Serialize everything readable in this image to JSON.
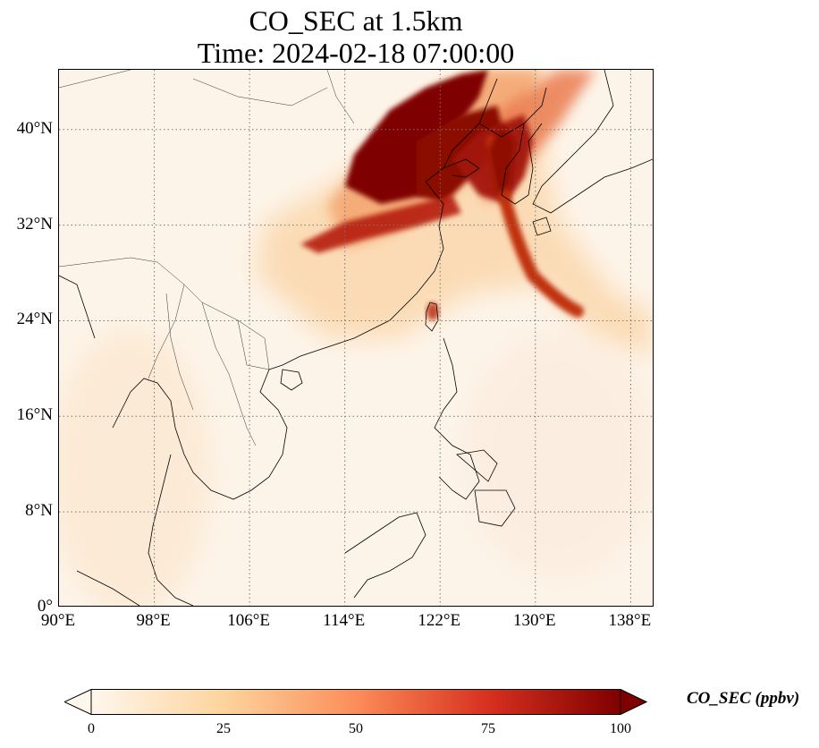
{
  "title": {
    "line1": "CO_SEC at 1.5km",
    "line2": "Time: 2024-02-18 07:00:00"
  },
  "map": {
    "projection": "PlateCarree",
    "lon_range": [
      90,
      140
    ],
    "lat_range": [
      0,
      45
    ],
    "gridlines": true,
    "gridline_style": "dotted",
    "coastlines": true,
    "country_borders": true,
    "background_color": "#fdf4e9"
  },
  "axes": {
    "x_ticks": [
      {
        "value": 90,
        "label": "90°E"
      },
      {
        "value": 98,
        "label": "98°E"
      },
      {
        "value": 106,
        "label": "106°E"
      },
      {
        "value": 114,
        "label": "114°E"
      },
      {
        "value": 122,
        "label": "122°E"
      },
      {
        "value": 130,
        "label": "130°E"
      },
      {
        "value": 138,
        "label": "138°E"
      }
    ],
    "y_ticks": [
      {
        "value": 0,
        "label": "0°"
      },
      {
        "value": 8,
        "label": "8°N"
      },
      {
        "value": 16,
        "label": "16°N"
      },
      {
        "value": 24,
        "label": "24°N"
      },
      {
        "value": 32,
        "label": "32°N"
      },
      {
        "value": 40,
        "label": "40°N"
      }
    ]
  },
  "colorbar": {
    "label": "CO_SEC (ppbv)",
    "colormap": "OrRd",
    "min": 0,
    "max": 100,
    "extend": "both",
    "ticks": [
      {
        "value": 0,
        "label": "0"
      },
      {
        "value": 25,
        "label": "25"
      },
      {
        "value": 50,
        "label": "50"
      },
      {
        "value": 75,
        "label": "75"
      },
      {
        "value": 100,
        "label": "100"
      }
    ],
    "colors": [
      "#fff7ec",
      "#fdd49e",
      "#fc8d59",
      "#d7301f",
      "#7f0000"
    ]
  }
}
